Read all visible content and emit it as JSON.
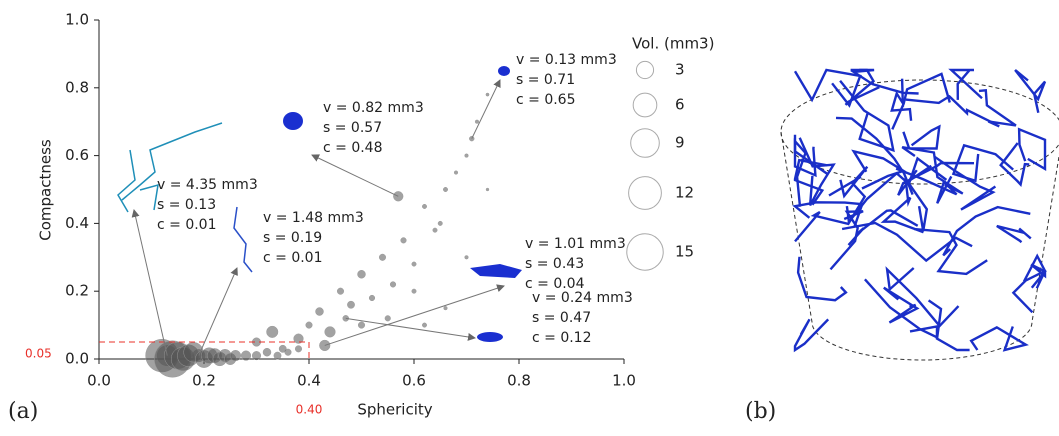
{
  "chart_data": {
    "type": "bubble",
    "panel_labels": [
      "(a)",
      "(b)"
    ],
    "xlabel": "Sphericity",
    "ylabel": "Compactness",
    "xlim": [
      0,
      1
    ],
    "ylim": [
      0,
      1
    ],
    "xticks": [
      {
        "value": 0,
        "label": "0.0"
      },
      0.2,
      0.4,
      0.6,
      0.8,
      {
        "value": 1,
        "label": "1.0"
      }
    ],
    "yticks": [
      {
        "value": 0,
        "label": "0.0"
      },
      0.2,
      0.4,
      0.6,
      0.8,
      {
        "value": 1,
        "label": "1.0"
      }
    ],
    "thresholds": [
      {
        "axis": "y",
        "value": 0.05,
        "label": "0.05"
      },
      {
        "axis": "x",
        "value": 0.4,
        "label": "0.40"
      }
    ],
    "threshold_color": "#e8302a",
    "color": "#555555",
    "x": [
      0.13,
      0.19,
      0.57,
      0.71,
      0.43,
      0.47,
      0.12,
      0.14,
      0.15,
      0.16,
      0.17,
      0.18,
      0.2,
      0.21,
      0.22,
      0.23,
      0.24,
      0.25,
      0.26,
      0.28,
      0.3,
      0.32,
      0.34,
      0.36,
      0.38,
      0.3,
      0.33,
      0.35,
      0.38,
      0.4,
      0.42,
      0.44,
      0.46,
      0.48,
      0.5,
      0.52,
      0.54,
      0.56,
      0.58,
      0.6,
      0.62,
      0.64,
      0.66,
      0.68,
      0.7,
      0.72,
      0.74,
      0.5,
      0.55,
      0.6,
      0.65,
      0.7,
      0.62,
      0.66,
      0.74
    ],
    "values": [
      0.01,
      0.01,
      0.48,
      0.65,
      0.04,
      0.12,
      0.01,
      0.0,
      0.01,
      0.0,
      0.01,
      0.02,
      0.0,
      0.01,
      0.01,
      0.0,
      0.01,
      0.0,
      0.01,
      0.01,
      0.01,
      0.02,
      0.01,
      0.02,
      0.03,
      0.05,
      0.08,
      0.03,
      0.06,
      0.1,
      0.14,
      0.08,
      0.2,
      0.16,
      0.25,
      0.18,
      0.3,
      0.22,
      0.35,
      0.28,
      0.45,
      0.38,
      0.5,
      0.55,
      0.6,
      0.7,
      0.78,
      0.1,
      0.12,
      0.2,
      0.4,
      0.3,
      0.1,
      0.15,
      0.5
    ],
    "sizes": [
      4.35,
      1.48,
      0.82,
      0.13,
      1.01,
      0.24,
      12,
      15,
      8,
      6,
      5,
      4,
      3,
      2.5,
      2,
      1.8,
      1.5,
      1.2,
      1,
      0.8,
      0.6,
      0.5,
      0.4,
      0.3,
      0.3,
      0.6,
      1.2,
      0.4,
      0.8,
      0.3,
      0.5,
      1.0,
      0.3,
      0.4,
      0.5,
      0.2,
      0.3,
      0.2,
      0.2,
      0.1,
      0.1,
      0.1,
      0.1,
      0.05,
      0.05,
      0.05,
      0.03,
      0.3,
      0.2,
      0.1,
      0.1,
      0.05,
      0.1,
      0.05,
      0.02
    ],
    "size_legend": {
      "title": "Vol. (mm3)",
      "values": [
        3,
        6,
        9,
        12,
        15
      ]
    },
    "annotations": [
      {
        "lines": [
          "v = 0.13 mm3",
          "s = 0.71",
          "c = 0.65"
        ]
      },
      {
        "lines": [
          "v = 0.82 mm3",
          "s = 0.57",
          "c = 0.48"
        ]
      },
      {
        "lines": [
          "v = 4.35 mm3",
          "s = 0.13",
          "c = 0.01"
        ]
      },
      {
        "lines": [
          "v = 1.48 mm3",
          "s = 0.19",
          "c = 0.01"
        ]
      },
      {
        "lines": [
          "v = 1.01 mm3",
          "s = 0.43",
          "c = 0.04"
        ]
      },
      {
        "lines": [
          "v = 0.24 mm3",
          "s = 0.47",
          "c = 0.12"
        ]
      }
    ]
  }
}
